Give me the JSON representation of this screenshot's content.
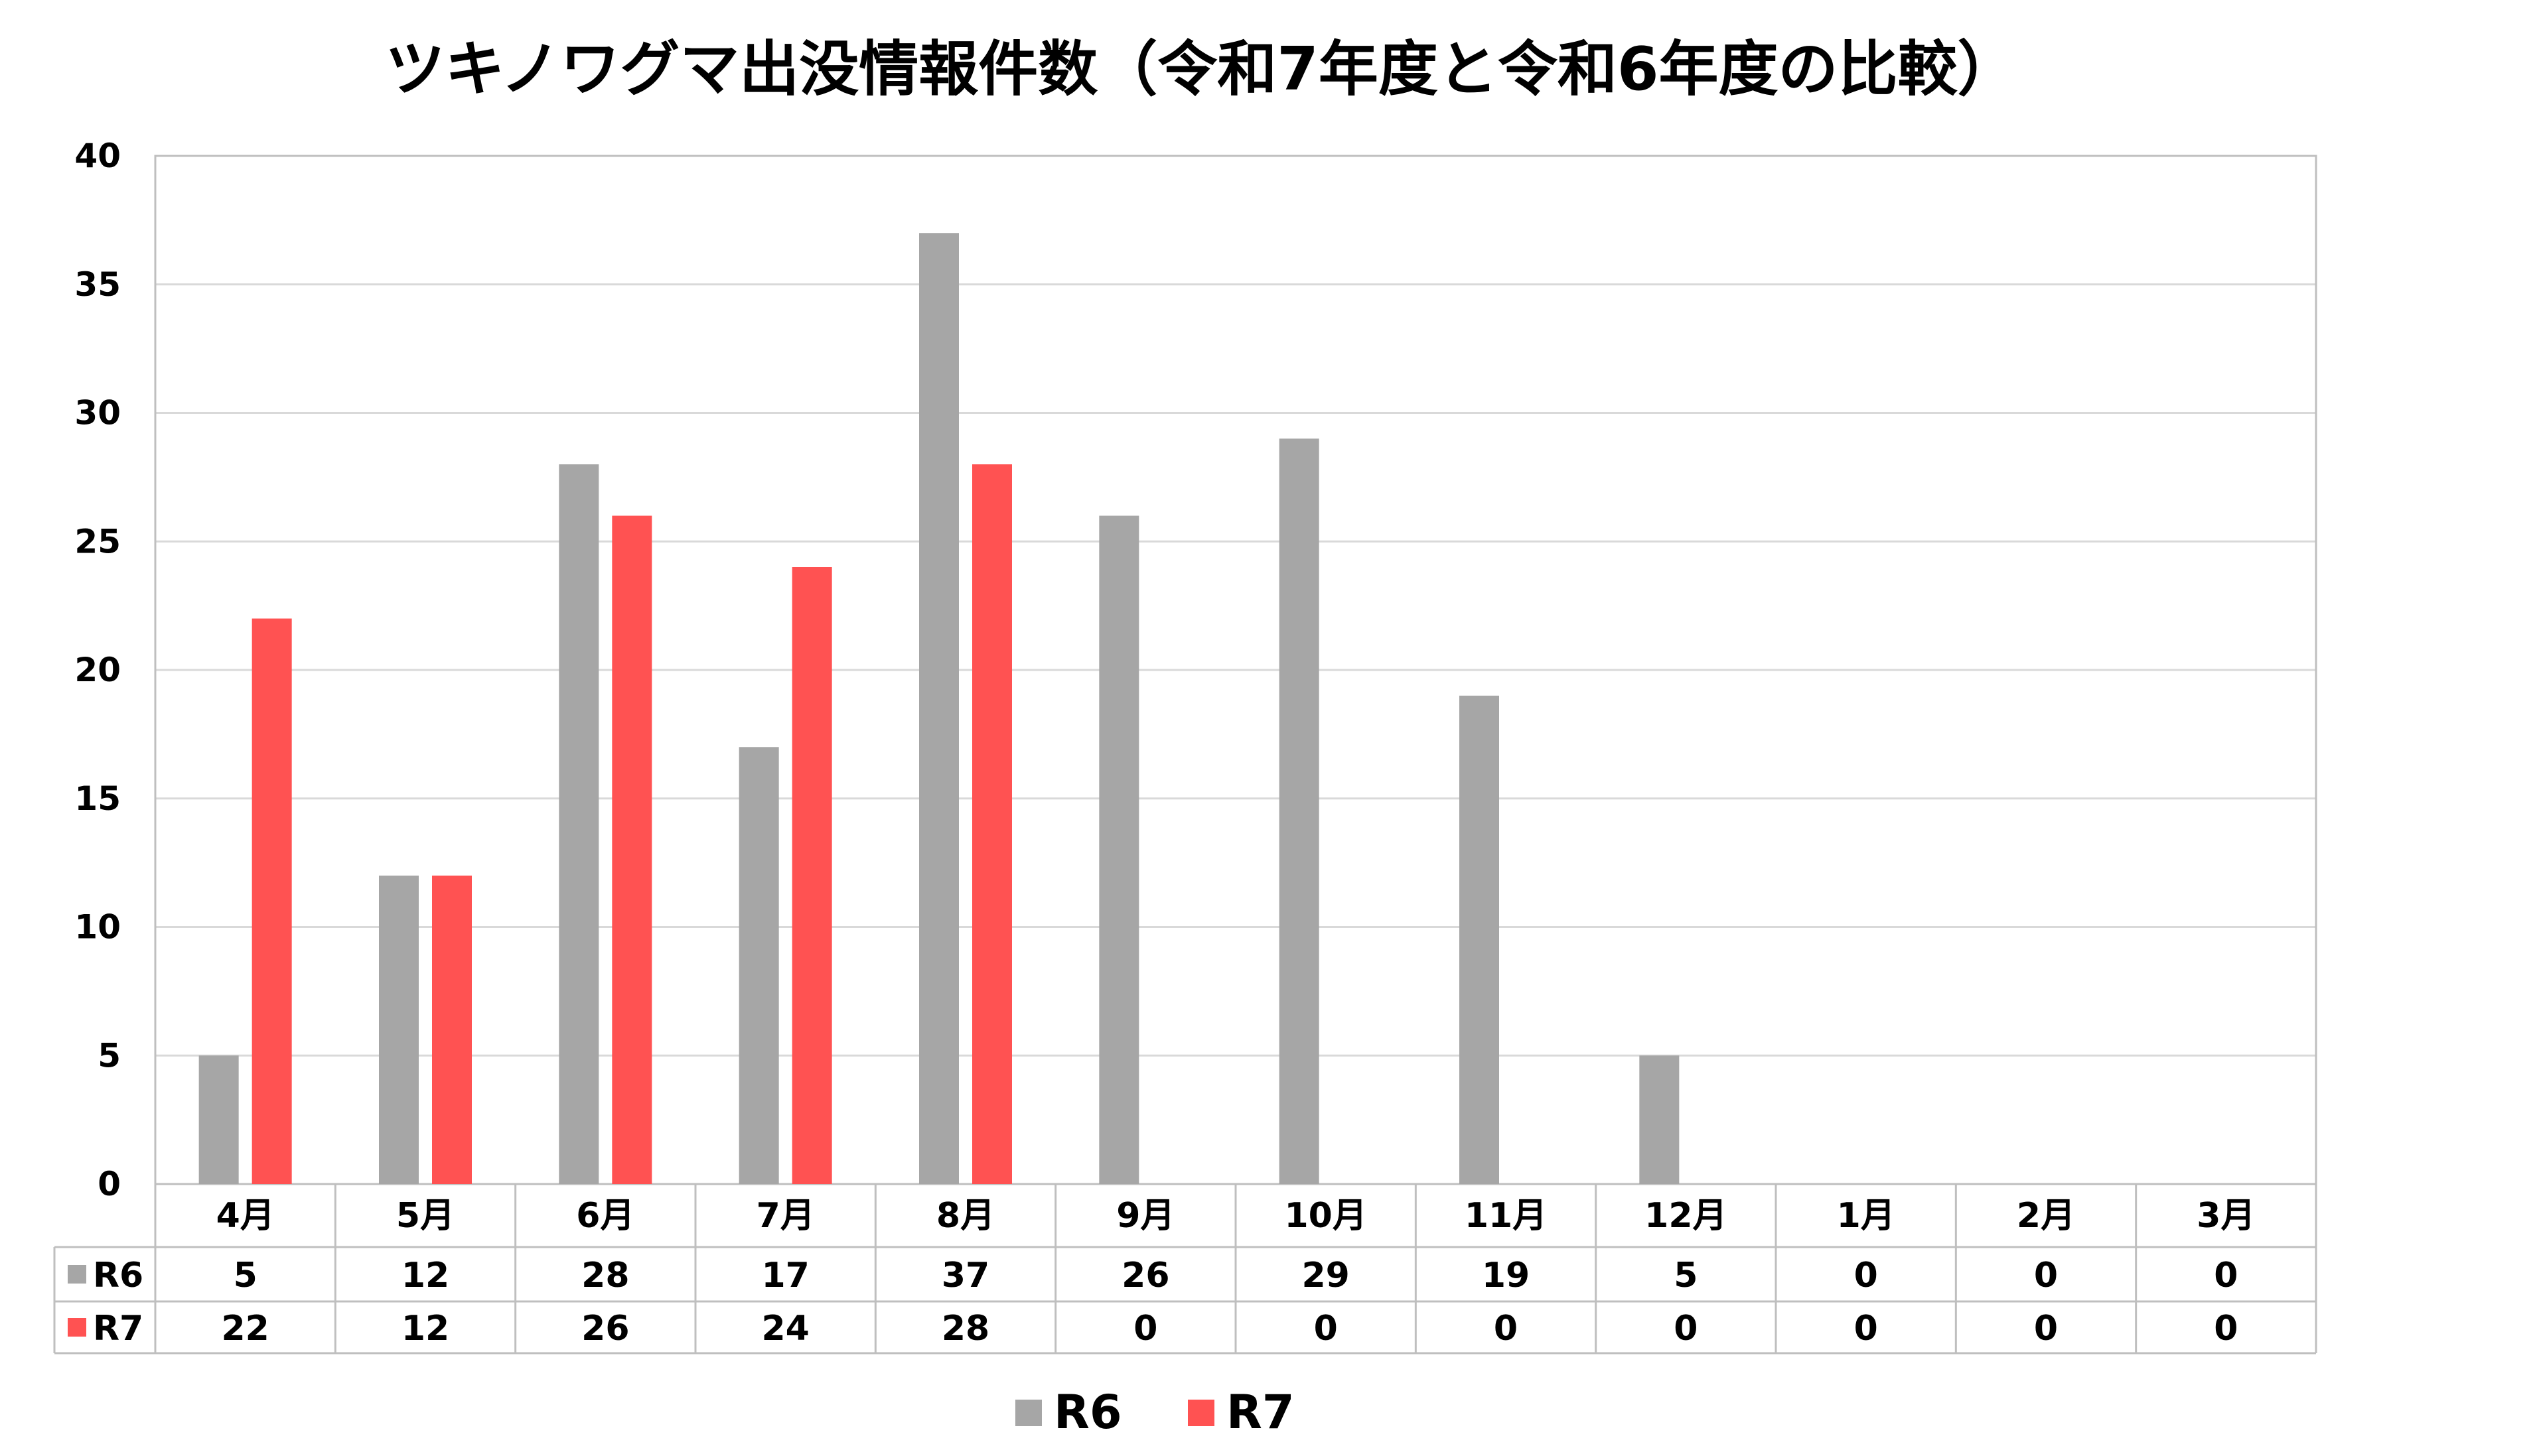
{
  "colors": {
    "r6": "#a6a6a6",
    "r7": "#ff5252",
    "grid": "#d9d9d9",
    "border": "#bfbfbf"
  },
  "chart_data": {
    "type": "bar",
    "title": "ツキノワグマ出没情報件数（令和7年度と令和6年度の比較）",
    "categories": [
      "4月",
      "5月",
      "6月",
      "7月",
      "8月",
      "9月",
      "10月",
      "11月",
      "12月",
      "1月",
      "2月",
      "3月"
    ],
    "series": [
      {
        "name": "R6",
        "values": [
          5,
          12,
          28,
          17,
          37,
          26,
          29,
          19,
          5,
          0,
          0,
          0
        ]
      },
      {
        "name": "R7",
        "values": [
          22,
          12,
          26,
          24,
          28,
          0,
          0,
          0,
          0,
          0,
          0,
          0
        ]
      }
    ],
    "ylim": [
      0,
      40
    ],
    "yticks": [
      0,
      5,
      10,
      15,
      20,
      25,
      30,
      35,
      40
    ],
    "grid": true,
    "legend": "bottom",
    "data_table": true
  }
}
